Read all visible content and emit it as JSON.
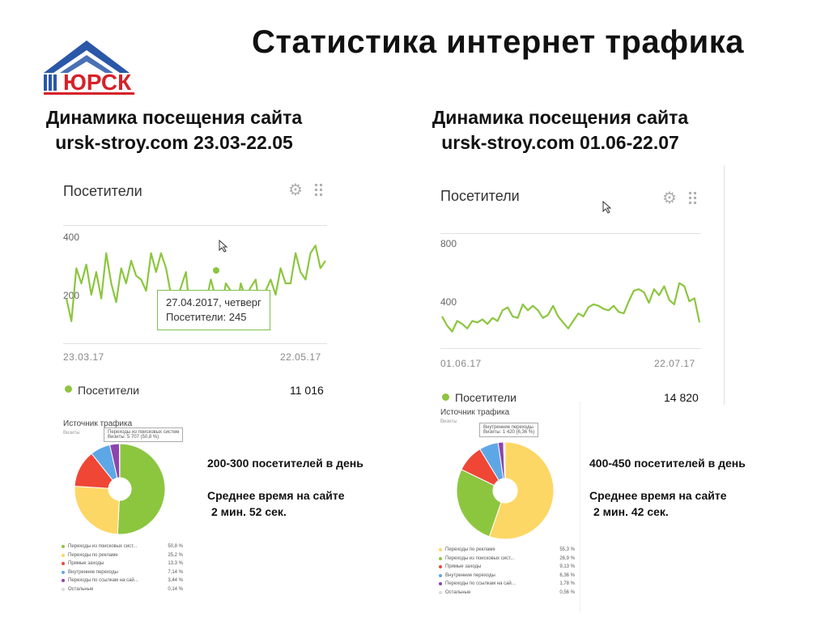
{
  "title": "Статистика интернет трафика",
  "logo": {
    "text": "ЮРСК",
    "color_blue": "#2a57a8",
    "color_red": "#d62128"
  },
  "headings": [
    {
      "line1": "Динамика посещения сайта",
      "line2": "ursk-stroy.com 23.03-22.05"
    },
    {
      "line1": "Динамика посещения сайта",
      "line2": "ursk-stroy.com 01.06-22.07"
    }
  ],
  "visitors_widgets": [
    {
      "title": "Посетители",
      "y_ticks": [
        "400",
        "200"
      ],
      "date_start": "23.03.17",
      "date_end": "22.05.17",
      "legend_label": "Посетители",
      "total": "11 016",
      "tooltip_line1": "27.04.2017, четверг",
      "tooltip_line2": "Посетители: 245"
    },
    {
      "title": "Посетители",
      "y_ticks": [
        "800",
        "400"
      ],
      "date_start": "01.06.17",
      "date_end": "22.07.17",
      "legend_label": "Посетители",
      "total": "14 820"
    }
  ],
  "source_panels": [
    {
      "title": "Источник трафика",
      "subtitle": "Визиты",
      "tooltip_line1": "Переходы из поисковых систем",
      "tooltip_line2": "Визиты: 5 707 (50,8 %)",
      "legend": [
        {
          "label": "Переходы из поисковых сист...",
          "value": "50,8 %"
        },
        {
          "label": "Переходы по рекламе",
          "value": "25,2 %"
        },
        {
          "label": "Прямые заходы",
          "value": "13,3 %"
        },
        {
          "label": "Внутренние переходы",
          "value": "7,14 %"
        },
        {
          "label": "Переходы по ссылкам на сай...",
          "value": "3,44 %"
        },
        {
          "label": "Остальные",
          "value": "0,14 %"
        }
      ]
    },
    {
      "title": "Источник трафика",
      "subtitle": "Визиты",
      "tooltip_line1": "Внутренние переходы",
      "tooltip_line2": "Визиты: 1 420 (6,36 %)",
      "legend": [
        {
          "label": "Переходы по рекламе",
          "value": "55,3 %"
        },
        {
          "label": "Переходы из поисковых сист...",
          "value": "26,9 %"
        },
        {
          "label": "Прямые заходы",
          "value": "9,13 %"
        },
        {
          "label": "Внутренние переходы",
          "value": "6,36 %"
        },
        {
          "label": "Переходы по ссылкам на сай...",
          "value": "1,78 %"
        },
        {
          "label": "Остальные",
          "value": "0,56 %"
        }
      ]
    }
  ],
  "stats": [
    {
      "visitors": "200-300 посетителей в день",
      "avg_label": "Среднее время на сайте",
      "avg_value": "2 мин. 52 сек."
    },
    {
      "visitors": "400-450 посетителей в день",
      "avg_label": "Среднее время на сайте",
      "avg_value": "2 мин. 42 сек."
    }
  ],
  "colors": {
    "line": "#8cc63f",
    "green": "#8cc63f",
    "yellow": "#fdd765",
    "red": "#ef4636",
    "blue": "#5ea7e6",
    "purple": "#8e44ad",
    "other": "#d9d9d9"
  },
  "chart_data": [
    {
      "type": "line",
      "series": [
        {
          "name": "Посетители",
          "values": [
            260,
            200,
            340,
            300,
            350,
            270,
            330,
            260,
            380,
            300,
            250,
            340,
            300,
            360,
            320,
            310,
            280,
            380,
            330,
            380,
            340,
            270,
            250,
            290,
            330,
            200,
            245,
            230,
            250,
            310,
            260,
            220,
            300,
            280,
            210,
            300,
            260,
            290,
            310,
            220,
            280,
            310,
            270,
            340,
            300,
            300,
            380,
            330,
            310,
            380,
            400,
            340,
            360
          ]
        }
      ],
      "ylim": [
        150,
        450
      ],
      "date_start": "23.03.17",
      "date_end": "22.05.17"
    },
    {
      "type": "line",
      "series": [
        {
          "name": "Посетители",
          "values": [
            360,
            300,
            260,
            330,
            310,
            280,
            330,
            320,
            340,
            310,
            350,
            330,
            400,
            420,
            360,
            350,
            440,
            400,
            430,
            400,
            350,
            370,
            430,
            360,
            320,
            280,
            330,
            380,
            360,
            420,
            440,
            430,
            410,
            400,
            430,
            390,
            380,
            460,
            530,
            540,
            520,
            450,
            540,
            500,
            560,
            470,
            440,
            580,
            560,
            460,
            480,
            320
          ]
        }
      ],
      "ylim": [
        150,
        900
      ],
      "date_start": "01.06.17",
      "date_end": "22.07.17"
    },
    {
      "type": "pie",
      "labels": [
        "Переходы из поисковых сист...",
        "Переходы по рекламе",
        "Прямые заходы",
        "Внутренние переходы",
        "Переходы по ссылкам на сай...",
        "Остальные"
      ],
      "values": [
        50.8,
        25.2,
        13.3,
        7.14,
        3.44,
        0.14
      ]
    },
    {
      "type": "pie",
      "labels": [
        "Переходы по рекламе",
        "Переходы из поисковых сист...",
        "Прямые заходы",
        "Внутренние переходы",
        "Переходы по ссылкам на сай...",
        "Остальные"
      ],
      "values": [
        55.3,
        26.9,
        9.13,
        6.36,
        1.78,
        0.56
      ]
    }
  ]
}
